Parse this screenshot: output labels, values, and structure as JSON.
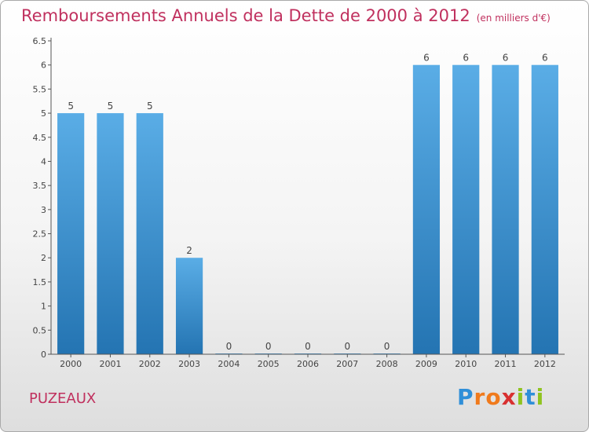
{
  "title": "Remboursements Annuels de la Dette de 2000 à 2012",
  "unit": "(en milliers d'€)",
  "commune": "PUZEAUX",
  "logo": {
    "letters": [
      "P",
      "r",
      "o",
      "x",
      "i",
      "t",
      "i"
    ],
    "colors": [
      "#2f8fd8",
      "#f07a1c",
      "#f07a1c",
      "#d83030",
      "#8fc31f",
      "#2f8fd8",
      "#8fc31f"
    ]
  },
  "colors": {
    "bar_light": "#5aade6",
    "bar_dark": "#2474b2",
    "title": "#c0305e"
  },
  "chart_data": {
    "type": "bar",
    "title": "Remboursements Annuels de la Dette de 2000 à 2012",
    "xlabel": "",
    "ylabel": "",
    "categories": [
      "2000",
      "2001",
      "2002",
      "2003",
      "2004",
      "2005",
      "2006",
      "2007",
      "2008",
      "2009",
      "2010",
      "2011",
      "2012"
    ],
    "values": [
      5,
      5,
      5,
      2,
      0,
      0,
      0,
      0,
      0,
      6,
      6,
      6,
      6
    ],
    "value_labels": [
      "5",
      "5",
      "5",
      "2",
      "0",
      "0",
      "0",
      "0",
      "0",
      "6",
      "6",
      "6",
      "6"
    ],
    "ylim": [
      0,
      6.5
    ],
    "yticks": [
      0,
      0.5,
      1,
      1.5,
      2,
      2.5,
      3,
      3.5,
      4,
      4.5,
      5,
      5.5,
      6,
      6.5
    ],
    "ytick_labels": [
      "0",
      "0.5",
      "1",
      "1.5",
      "2",
      "2.5",
      "3",
      "3.5",
      "4",
      "4.5",
      "5",
      "5.5",
      "6",
      "6.5"
    ],
    "grid": false,
    "legend": false
  }
}
